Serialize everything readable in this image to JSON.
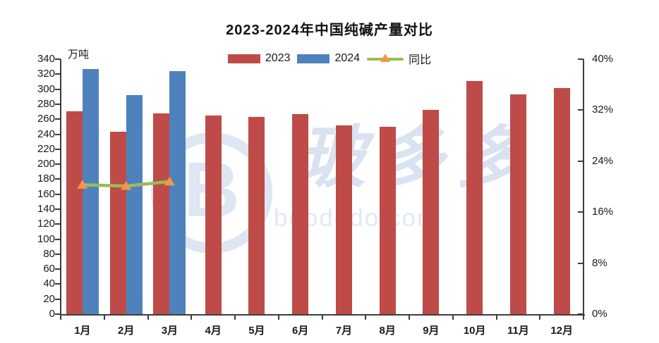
{
  "chart_data": {
    "type": "bar",
    "title": "2023-2024年中国纯碱产量对比",
    "categories": [
      "1月",
      "2月",
      "3月",
      "4月",
      "5月",
      "6月",
      "7月",
      "8月",
      "9月",
      "10月",
      "11月",
      "12月"
    ],
    "series": [
      {
        "name": "2023",
        "type": "bar",
        "color": "#bf4b48",
        "values": [
          271,
          243,
          268,
          265,
          263,
          267,
          252,
          250,
          272,
          311,
          293,
          302
        ]
      },
      {
        "name": "2024",
        "type": "bar",
        "color": "#4f81bd",
        "values": [
          327,
          292,
          324
        ]
      },
      {
        "name": "同比",
        "type": "line",
        "axis": "right",
        "color": "#9bbb59",
        "marker": "triangle",
        "marker_color": "#f79646",
        "values": [
          20.3,
          20.1,
          20.8
        ]
      }
    ],
    "left_axis": {
      "unit": "万吨",
      "min": 0,
      "max": 340,
      "step": 20
    },
    "right_axis": {
      "min": 0,
      "max": 40,
      "step": 8,
      "format": "percent"
    },
    "legend": {
      "position": "top",
      "items": [
        "2023",
        "2024",
        "同比"
      ]
    },
    "grid": false,
    "watermark": {
      "logo": "B",
      "text": "玻多多",
      "domain": "boododo.com"
    }
  }
}
